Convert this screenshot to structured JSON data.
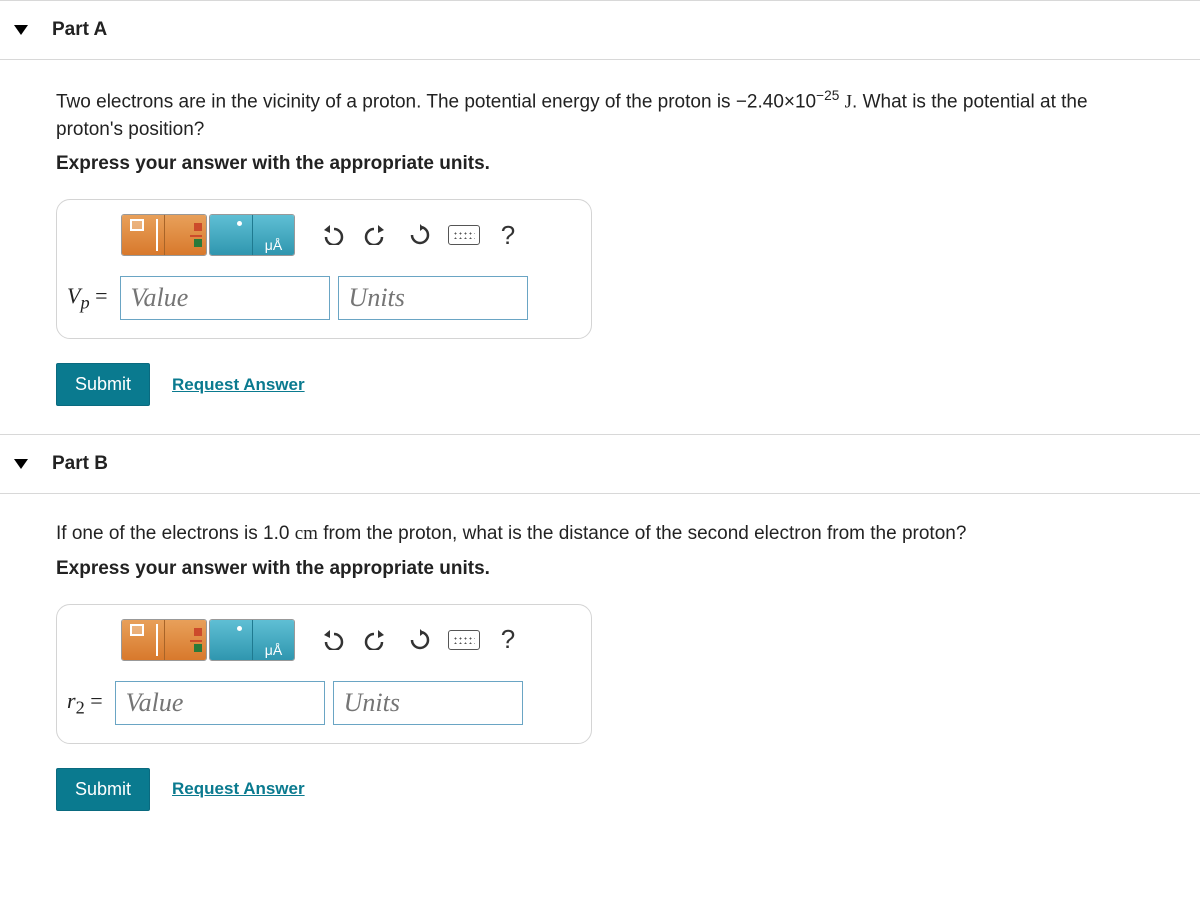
{
  "parts": {
    "a": {
      "title": "Part A",
      "question_html": "Two electrons are in the vicinity of a proton. The potential energy of the proton is −2.40×10<sup>−25</sup> <span class=\"unit-J\">J</span>. What is the potential at the proton's position?",
      "instruction": "Express your answer with the appropriate units.",
      "var_label_html": "<i>V<sub>p</sub></i> =",
      "value_placeholder": "Value",
      "units_placeholder": "Units",
      "submit_label": "Submit",
      "request_label": "Request Answer"
    },
    "b": {
      "title": "Part B",
      "question_html": "If one of the electrons is 1.0 <span style=\"font-family:'Times New Roman',serif\">cm</span> from the proton, what is the distance of the second electron from the proton?",
      "instruction": "Express your answer with the appropriate units.",
      "var_label_html": "<i>r</i><sub>2</sub> =",
      "value_placeholder": "Value",
      "units_placeholder": "Units",
      "submit_label": "Submit",
      "request_label": "Request Answer"
    }
  },
  "toolbar_icons": {
    "templates": "templates-icon",
    "fraction": "fraction-icon",
    "symbols": "symbols-icon",
    "angstrom": "angstrom-icon",
    "undo": "↶",
    "redo": "↷",
    "reset": "↻",
    "keyboard": "keyboard",
    "help": "?"
  },
  "colors": {
    "accent": "#0a7a8f",
    "tool_orange_top": "#e8a05a",
    "tool_orange_bottom": "#d8792c",
    "tool_teal_top": "#5fbfd4",
    "tool_teal_bottom": "#2f96af",
    "border": "#d4d4d4",
    "input_border": "#6aa5c4",
    "placeholder": "#777"
  }
}
